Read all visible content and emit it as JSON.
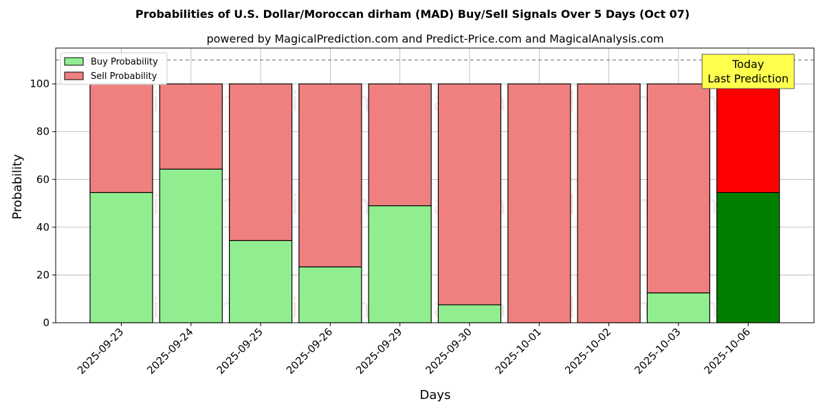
{
  "chart_data": {
    "type": "bar",
    "stacked": true,
    "title": "Probabilities of U.S. Dollar/Moroccan dirham (MAD) Buy/Sell Signals Over 5 Days (Oct 07)",
    "subtitle": "powered by MagicalPrediction.com and Predict-Price.com and MagicalAnalysis.com",
    "xlabel": "Days",
    "ylabel": "Probability",
    "ylim": [
      0,
      115
    ],
    "yticks": [
      0,
      20,
      40,
      60,
      80,
      100
    ],
    "grid": true,
    "legend_position": "top-left",
    "categories": [
      "2025-09-23",
      "2025-09-24",
      "2025-09-25",
      "2025-09-26",
      "2025-09-29",
      "2025-09-30",
      "2025-10-01",
      "2025-10-02",
      "2025-10-03",
      "2025-10-06"
    ],
    "series": [
      {
        "name": "Buy Probability",
        "color": "#90ee90",
        "highlight_color": "#008000",
        "values": [
          54.5,
          64.3,
          34.4,
          23.4,
          49.0,
          7.5,
          0,
          0,
          12.5,
          54.5
        ]
      },
      {
        "name": "Sell Probability",
        "color": "#f08080",
        "highlight_color": "#ff0000",
        "values": [
          45.5,
          35.7,
          65.6,
          76.6,
          51.0,
          92.5,
          100,
          100,
          87.5,
          45.5
        ]
      }
    ],
    "highlight_index": 9,
    "reference_line": {
      "y": 110,
      "style": "dashed",
      "color": "#808080"
    },
    "annotation": {
      "lines": [
        "Today",
        "Last Prediction"
      ],
      "background": "#ffff4d",
      "category_index": 9
    },
    "watermarks": [
      "MagicalAnalysis.com",
      "MagicalPrediction.com",
      "MagicalAnalysis.com",
      "MagicalPrediction.com",
      "MagicalAnalysis.com",
      "MagicalPrediction.com"
    ]
  }
}
